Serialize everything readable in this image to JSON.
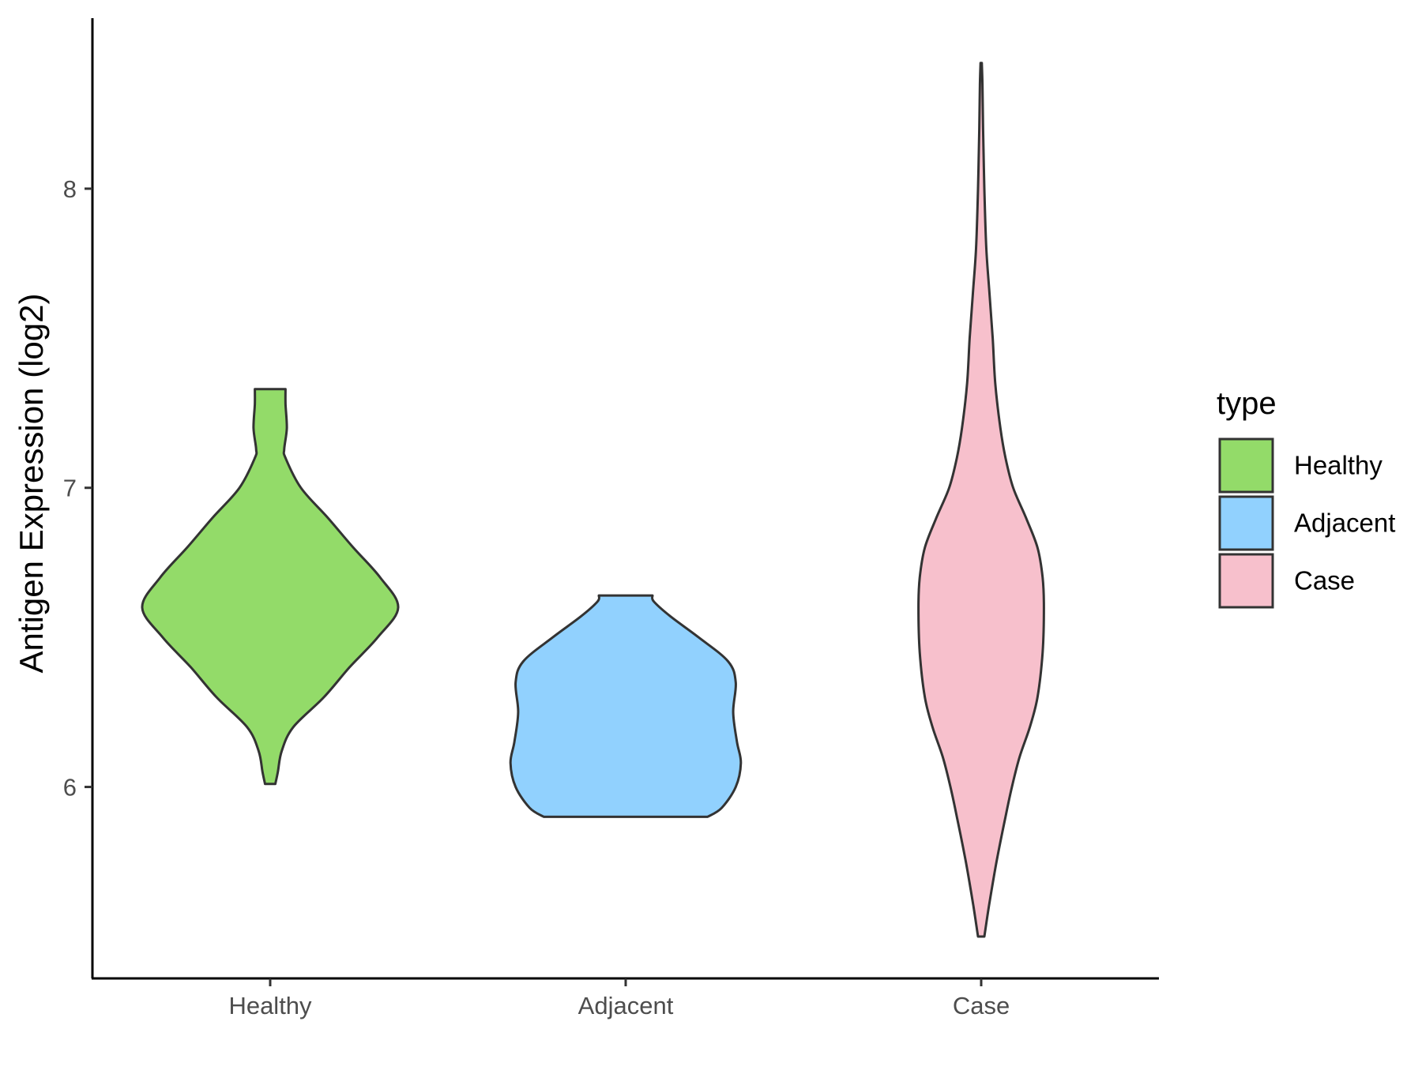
{
  "chart_data": {
    "type": "violin",
    "title": "",
    "xlabel": "",
    "ylabel": "Antigen Expression (log2)",
    "categories": [
      "Healthy",
      "Adjacent",
      "Case"
    ],
    "y_ticks": [
      6,
      7,
      8
    ],
    "y_tick_labels": [
      "6",
      "7",
      "8"
    ],
    "ylim": [
      5.36,
      8.57
    ],
    "grid": false,
    "legend": {
      "title": "type",
      "position": "right",
      "entries": [
        {
          "label": "Healthy",
          "color": "#93DB69"
        },
        {
          "label": "Adjacent",
          "color": "#91D1FE"
        },
        {
          "label": "Case",
          "color": "#F7C0CC"
        }
      ]
    },
    "series": [
      {
        "name": "Healthy",
        "color": "#93DB69",
        "range": [
          6.01,
          7.33
        ],
        "density_profile": [
          [
            6.01,
            0.04
          ],
          [
            6.05,
            0.06
          ],
          [
            6.12,
            0.09
          ],
          [
            6.2,
            0.18
          ],
          [
            6.3,
            0.42
          ],
          [
            6.4,
            0.62
          ],
          [
            6.5,
            0.84
          ],
          [
            6.6,
            1.0
          ],
          [
            6.7,
            0.86
          ],
          [
            6.8,
            0.65
          ],
          [
            6.9,
            0.45
          ],
          [
            7.0,
            0.24
          ],
          [
            7.1,
            0.12
          ],
          [
            7.13,
            0.11
          ],
          [
            7.2,
            0.13
          ],
          [
            7.28,
            0.12
          ],
          [
            7.33,
            0.12
          ]
        ]
      },
      {
        "name": "Adjacent",
        "color": "#91D1FE",
        "range": [
          5.9,
          6.64
        ],
        "density_profile": [
          [
            5.9,
            0.64
          ],
          [
            5.93,
            0.75
          ],
          [
            6.0,
            0.86
          ],
          [
            6.08,
            0.9
          ],
          [
            6.15,
            0.87
          ],
          [
            6.25,
            0.84
          ],
          [
            6.35,
            0.86
          ],
          [
            6.42,
            0.8
          ],
          [
            6.5,
            0.57
          ],
          [
            6.57,
            0.35
          ],
          [
            6.62,
            0.22
          ],
          [
            6.64,
            0.21
          ]
        ]
      },
      {
        "name": "Case",
        "color": "#F7C0CC",
        "range": [
          5.5,
          8.42
        ],
        "density_profile": [
          [
            5.5,
            0.025
          ],
          [
            5.6,
            0.06
          ],
          [
            5.75,
            0.12
          ],
          [
            5.9,
            0.19
          ],
          [
            6.0,
            0.24
          ],
          [
            6.1,
            0.3
          ],
          [
            6.2,
            0.38
          ],
          [
            6.3,
            0.44
          ],
          [
            6.45,
            0.48
          ],
          [
            6.6,
            0.49
          ],
          [
            6.7,
            0.48
          ],
          [
            6.8,
            0.44
          ],
          [
            6.9,
            0.35
          ],
          [
            7.0,
            0.25
          ],
          [
            7.1,
            0.19
          ],
          [
            7.2,
            0.15
          ],
          [
            7.35,
            0.11
          ],
          [
            7.5,
            0.09
          ],
          [
            7.65,
            0.065
          ],
          [
            7.8,
            0.04
          ],
          [
            8.0,
            0.025
          ],
          [
            8.2,
            0.015
          ],
          [
            8.35,
            0.01
          ],
          [
            8.42,
            0.005
          ]
        ]
      }
    ]
  }
}
